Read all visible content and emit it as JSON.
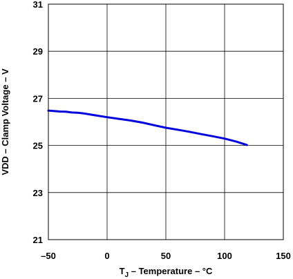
{
  "chart_data": {
    "type": "line",
    "title": "",
    "xlabel_main": "T",
    "xlabel_sub": "J",
    "xlabel_rest": " – Temperature – °C",
    "ylabel": "VDD – Clamp Voltage – V",
    "xlim": [
      -50,
      150
    ],
    "ylim": [
      21,
      31
    ],
    "xticks": [
      -50,
      0,
      50,
      100,
      150
    ],
    "xtick_labels": [
      "–50",
      "0",
      "50",
      "100",
      "150"
    ],
    "yticks": [
      21,
      23,
      25,
      27,
      29,
      31
    ],
    "ytick_labels": [
      "21",
      "23",
      "25",
      "27",
      "29",
      "31"
    ],
    "grid": true,
    "series": [
      {
        "color": "#0000dd",
        "x": [
          -50,
          -40,
          -35,
          -30,
          -25,
          -20,
          -10,
          0,
          10,
          20,
          30,
          40,
          50,
          60,
          70,
          80,
          90,
          100,
          110,
          119
        ],
        "y": [
          26.48,
          26.44,
          26.43,
          26.4,
          26.39,
          26.36,
          26.28,
          26.2,
          26.13,
          26.06,
          25.97,
          25.86,
          25.75,
          25.67,
          25.58,
          25.48,
          25.39,
          25.29,
          25.16,
          25.02
        ]
      }
    ]
  }
}
